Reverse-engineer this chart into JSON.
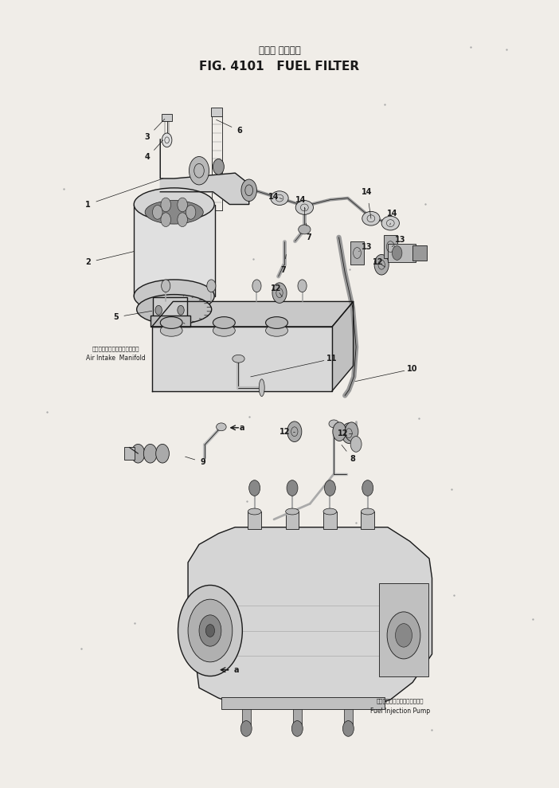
{
  "title_japanese": "フェル フィルタ",
  "title_english": "FIG. 4101   FUEL FILTER",
  "background_color": "#f0ede8",
  "line_color": "#1a1a1a",
  "fig_width": 7.02,
  "fig_height": 9.89,
  "air_intake_jp": "エアーインテークマニホールド",
  "air_intake_en": "Air Intake  Manifold",
  "pump_jp": "フェルインジェクションポンプ",
  "pump_en": "Fuel Injection Pump"
}
